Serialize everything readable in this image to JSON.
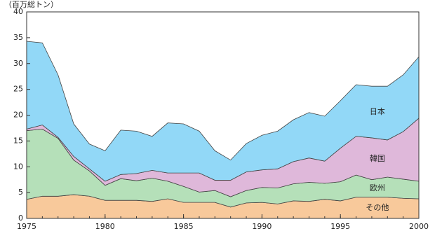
{
  "chart_data": {
    "type": "stacked-area",
    "y_label": "（百万総トン）",
    "x": [
      1975,
      1976,
      1977,
      1978,
      1979,
      1980,
      1981,
      1982,
      1983,
      1984,
      1985,
      1986,
      1987,
      1988,
      1989,
      1990,
      1991,
      1992,
      1993,
      1994,
      1995,
      1996,
      1997,
      1998,
      1999,
      2000
    ],
    "series": [
      {
        "name": "その他",
        "color": "#f8c99b",
        "values": [
          3.7,
          4.3,
          4.3,
          4.6,
          4.3,
          3.5,
          3.5,
          3.5,
          3.3,
          3.8,
          3.1,
          3.1,
          3.1,
          2.2,
          3.0,
          3.1,
          2.8,
          3.4,
          3.3,
          3.7,
          3.4,
          4.1,
          4.1,
          4.1,
          3.9,
          3.8
        ]
      },
      {
        "name": "欧州",
        "color": "#b5e0b9",
        "values": [
          13.3,
          13.0,
          11.2,
          6.7,
          4.9,
          2.9,
          4.2,
          3.8,
          4.5,
          3.4,
          3.1,
          2.0,
          2.3,
          2.0,
          2.4,
          2.9,
          3.1,
          3.3,
          3.7,
          3.1,
          3.7,
          4.3,
          3.4,
          3.9,
          3.7,
          3.4
        ]
      },
      {
        "name": "韓国",
        "color": "#dfb8da",
        "values": [
          0.3,
          0.8,
          0.2,
          0.7,
          0.4,
          0.8,
          0.8,
          1.4,
          1.5,
          1.6,
          2.6,
          3.7,
          2.0,
          3.2,
          3.6,
          3.4,
          3.7,
          4.3,
          4.7,
          4.3,
          6.5,
          7.5,
          8.1,
          7.2,
          9.2,
          12.2
        ]
      },
      {
        "name": "日本",
        "color": "#92d8f7",
        "values": [
          17.0,
          15.9,
          12.1,
          6.3,
          4.8,
          5.9,
          8.6,
          8.2,
          6.6,
          9.7,
          9.5,
          8.1,
          5.7,
          3.9,
          5.5,
          6.7,
          7.3,
          8.1,
          8.8,
          8.7,
          9.2,
          10.0,
          10.0,
          10.4,
          11.0,
          11.9
        ]
      }
    ],
    "xlim": [
      1975,
      2000
    ],
    "xticks": [
      1975,
      1980,
      1985,
      1990,
      1995,
      2000
    ],
    "ylim": [
      0,
      40
    ],
    "yticks": [
      0,
      5,
      10,
      15,
      20,
      25,
      30,
      35,
      40
    ]
  }
}
